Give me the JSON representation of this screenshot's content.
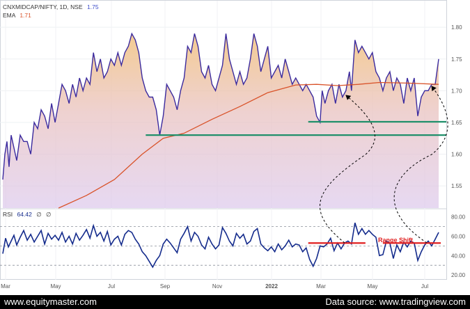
{
  "chart_data": [
    {
      "type": "area",
      "header": {
        "symbol": "CNXMIDCAP/NIFTY, 1D, NSE",
        "symbol_value": "1.75",
        "ema_label": "EMA",
        "ema_value": "1.71"
      },
      "y_ticks": [
        "1.80",
        "1.75",
        "1.70",
        "1.65",
        "1.60",
        "1.55"
      ],
      "ylim": [
        1.515,
        1.832
      ],
      "x_labels": [
        "Mar",
        "May",
        "Jul",
        "Sep",
        "Nov",
        "2022",
        "Mar",
        "May",
        "Jul"
      ],
      "series": [
        {
          "name": "CNXMIDCAP/NIFTY",
          "values": [
            [
              0,
              1.56
            ],
            [
              3,
              1.6
            ],
            [
              6,
              1.62
            ],
            [
              9,
              1.58
            ],
            [
              12,
              1.63
            ],
            [
              16,
              1.61
            ],
            [
              20,
              1.59
            ],
            [
              25,
              1.63
            ],
            [
              30,
              1.62
            ],
            [
              35,
              1.62
            ],
            [
              40,
              1.6
            ],
            [
              45,
              1.65
            ],
            [
              50,
              1.64
            ],
            [
              55,
              1.67
            ],
            [
              60,
              1.66
            ],
            [
              65,
              1.64
            ],
            [
              70,
              1.68
            ],
            [
              75,
              1.65
            ],
            [
              80,
              1.68
            ],
            [
              85,
              1.71
            ],
            [
              90,
              1.7
            ],
            [
              95,
              1.68
            ],
            [
              100,
              1.71
            ],
            [
              105,
              1.69
            ],
            [
              110,
              1.72
            ],
            [
              115,
              1.7
            ],
            [
              120,
              1.72
            ],
            [
              125,
              1.71
            ],
            [
              130,
              1.76
            ],
            [
              135,
              1.73
            ],
            [
              140,
              1.75
            ],
            [
              145,
              1.72
            ],
            [
              150,
              1.73
            ],
            [
              155,
              1.75
            ],
            [
              160,
              1.74
            ],
            [
              165,
              1.76
            ],
            [
              170,
              1.74
            ],
            [
              175,
              1.76
            ],
            [
              180,
              1.77
            ],
            [
              185,
              1.79
            ],
            [
              190,
              1.78
            ],
            [
              195,
              1.76
            ],
            [
              200,
              1.72
            ],
            [
              205,
              1.7
            ],
            [
              210,
              1.69
            ],
            [
              215,
              1.69
            ],
            [
              220,
              1.67
            ],
            [
              225,
              1.63
            ],
            [
              230,
              1.66
            ],
            [
              235,
              1.71
            ],
            [
              240,
              1.7
            ],
            [
              245,
              1.69
            ],
            [
              250,
              1.67
            ],
            [
              255,
              1.7
            ],
            [
              260,
              1.72
            ],
            [
              265,
              1.77
            ],
            [
              270,
              1.76
            ],
            [
              275,
              1.79
            ],
            [
              280,
              1.77
            ],
            [
              285,
              1.73
            ],
            [
              290,
              1.72
            ],
            [
              295,
              1.74
            ],
            [
              300,
              1.71
            ],
            [
              305,
              1.7
            ],
            [
              310,
              1.72
            ],
            [
              315,
              1.74
            ],
            [
              320,
              1.79
            ],
            [
              325,
              1.75
            ],
            [
              330,
              1.73
            ],
            [
              335,
              1.71
            ],
            [
              340,
              1.73
            ],
            [
              345,
              1.71
            ],
            [
              350,
              1.72
            ],
            [
              355,
              1.75
            ],
            [
              360,
              1.79
            ],
            [
              365,
              1.77
            ],
            [
              370,
              1.73
            ],
            [
              375,
              1.75
            ],
            [
              380,
              1.77
            ],
            [
              385,
              1.72
            ],
            [
              390,
              1.73
            ],
            [
              395,
              1.74
            ],
            [
              400,
              1.72
            ],
            [
              405,
              1.75
            ],
            [
              410,
              1.73
            ],
            [
              415,
              1.71
            ],
            [
              420,
              1.72
            ],
            [
              425,
              1.71
            ],
            [
              430,
              1.7
            ],
            [
              435,
              1.71
            ],
            [
              440,
              1.7
            ],
            [
              445,
              1.69
            ],
            [
              450,
              1.66
            ],
            [
              455,
              1.65
            ],
            [
              458,
              1.7
            ],
            [
              462,
              1.68
            ],
            [
              467,
              1.7
            ],
            [
              472,
              1.71
            ],
            [
              477,
              1.68
            ],
            [
              482,
              1.71
            ],
            [
              487,
              1.69
            ],
            [
              492,
              1.7
            ],
            [
              497,
              1.73
            ],
            [
              500,
              1.7
            ],
            [
              505,
              1.78
            ],
            [
              510,
              1.76
            ],
            [
              515,
              1.77
            ],
            [
              520,
              1.76
            ],
            [
              525,
              1.75
            ],
            [
              530,
              1.76
            ],
            [
              535,
              1.73
            ],
            [
              540,
              1.72
            ],
            [
              545,
              1.7
            ],
            [
              550,
              1.72
            ],
            [
              555,
              1.73
            ],
            [
              560,
              1.7
            ],
            [
              565,
              1.72
            ],
            [
              570,
              1.71
            ],
            [
              575,
              1.68
            ],
            [
              580,
              1.72
            ],
            [
              585,
              1.7
            ],
            [
              590,
              1.72
            ],
            [
              595,
              1.66
            ],
            [
              600,
              1.69
            ],
            [
              605,
              1.7
            ],
            [
              610,
              1.7
            ],
            [
              615,
              1.71
            ],
            [
              620,
              1.71
            ],
            [
              625,
              1.75
            ]
          ]
        },
        {
          "name": "EMA",
          "values": [
            [
              80,
              1.515
            ],
            [
              120,
              1.535
            ],
            [
              160,
              1.56
            ],
            [
              200,
              1.6
            ],
            [
              230,
              1.625
            ],
            [
              260,
              1.633
            ],
            [
              300,
              1.655
            ],
            [
              340,
              1.675
            ],
            [
              380,
              1.697
            ],
            [
              420,
              1.709
            ],
            [
              450,
              1.71
            ],
            [
              480,
              1.708
            ],
            [
              510,
              1.71
            ],
            [
              540,
              1.713
            ],
            [
              580,
              1.712
            ],
            [
              625,
              1.71
            ]
          ]
        }
      ],
      "support_lines": [
        {
          "y": 1.651,
          "x_start": 438
        },
        {
          "y": 1.63,
          "x_start": 205
        }
      ]
    },
    {
      "type": "line",
      "header": {
        "label": "RSI",
        "value": "64.42",
        "extra1": "∅",
        "extra2": "∅"
      },
      "y_ticks": [
        "80.00",
        "60.00",
        "40.00",
        "20.00"
      ],
      "ylim": [
        15,
        87
      ],
      "reference_levels": [
        70,
        50,
        30
      ],
      "annotation": "Range Shift",
      "series": [
        {
          "name": "RSI",
          "values": [
            [
              0,
              42
            ],
            [
              4,
              58
            ],
            [
              8,
              49
            ],
            [
              12,
              55
            ],
            [
              16,
              61
            ],
            [
              20,
              51
            ],
            [
              25,
              59
            ],
            [
              30,
              66
            ],
            [
              35,
              56
            ],
            [
              40,
              62
            ],
            [
              45,
              54
            ],
            [
              50,
              60
            ],
            [
              55,
              66
            ],
            [
              60,
              52
            ],
            [
              65,
              63
            ],
            [
              70,
              57
            ],
            [
              75,
              61
            ],
            [
              80,
              56
            ],
            [
              85,
              64
            ],
            [
              90,
              54
            ],
            [
              95,
              60
            ],
            [
              100,
              52
            ],
            [
              105,
              63
            ],
            [
              110,
              56
            ],
            [
              115,
              61
            ],
            [
              120,
              67
            ],
            [
              125,
              58
            ],
            [
              130,
              71
            ],
            [
              135,
              60
            ],
            [
              140,
              64
            ],
            [
              145,
              55
            ],
            [
              150,
              65
            ],
            [
              155,
              51
            ],
            [
              160,
              57
            ],
            [
              165,
              60
            ],
            [
              170,
              51
            ],
            [
              175,
              62
            ],
            [
              180,
              66
            ],
            [
              185,
              64
            ],
            [
              190,
              57
            ],
            [
              195,
              52
            ],
            [
              200,
              44
            ],
            [
              205,
              40
            ],
            [
              210,
              34
            ],
            [
              215,
              28
            ],
            [
              220,
              35
            ],
            [
              225,
              40
            ],
            [
              230,
              52
            ],
            [
              235,
              57
            ],
            [
              240,
              53
            ],
            [
              245,
              48
            ],
            [
              250,
              43
            ],
            [
              255,
              57
            ],
            [
              260,
              63
            ],
            [
              265,
              70
            ],
            [
              270,
              55
            ],
            [
              275,
              64
            ],
            [
              280,
              60
            ],
            [
              285,
              51
            ],
            [
              290,
              47
            ],
            [
              295,
              59
            ],
            [
              300,
              52
            ],
            [
              305,
              47
            ],
            [
              310,
              51
            ],
            [
              315,
              69
            ],
            [
              320,
              63
            ],
            [
              325,
              55
            ],
            [
              330,
              50
            ],
            [
              335,
              63
            ],
            [
              340,
              58
            ],
            [
              345,
              62
            ],
            [
              350,
              52
            ],
            [
              355,
              55
            ],
            [
              360,
              65
            ],
            [
              365,
              68
            ],
            [
              370,
              52
            ],
            [
              375,
              48
            ],
            [
              380,
              45
            ],
            [
              385,
              49
            ],
            [
              390,
              44
            ],
            [
              395,
              52
            ],
            [
              400,
              46
            ],
            [
              405,
              50
            ],
            [
              410,
              56
            ],
            [
              415,
              49
            ],
            [
              420,
              52
            ],
            [
              425,
              51
            ],
            [
              430,
              44
            ],
            [
              435,
              48
            ],
            [
              440,
              36
            ],
            [
              445,
              29
            ],
            [
              450,
              37
            ],
            [
              455,
              50
            ],
            [
              460,
              49
            ],
            [
              465,
              52
            ],
            [
              470,
              58
            ],
            [
              475,
              45
            ],
            [
              480,
              53
            ],
            [
              485,
              47
            ],
            [
              490,
              53
            ],
            [
              495,
              55
            ],
            [
              500,
              52
            ],
            [
              505,
              74
            ],
            [
              510,
              62
            ],
            [
              515,
              68
            ],
            [
              520,
              62
            ],
            [
              525,
              66
            ],
            [
              530,
              62
            ],
            [
              535,
              59
            ],
            [
              540,
              40
            ],
            [
              545,
              41
            ],
            [
              550,
              55
            ],
            [
              555,
              53
            ],
            [
              560,
              37
            ],
            [
              565,
              51
            ],
            [
              570,
              44
            ],
            [
              575,
              54
            ],
            [
              580,
              49
            ],
            [
              585,
              55
            ],
            [
              590,
              53
            ],
            [
              595,
              35
            ],
            [
              600,
              44
            ],
            [
              605,
              51
            ],
            [
              610,
              55
            ],
            [
              615,
              50
            ],
            [
              620,
              57
            ],
            [
              625,
              64
            ]
          ]
        }
      ],
      "range_lines": [
        {
          "y": 53,
          "x_start": 438,
          "x_end": 520
        },
        {
          "y": 53,
          "x_start": 545,
          "x_end": 628
        }
      ]
    }
  ],
  "footer": {
    "left": "www.equitymaster.com",
    "right": "Data source: www.tradingview.com"
  },
  "colors": {
    "price_line": "#3b2a9e",
    "ema_line": "#d9532a",
    "support": "#1f8f6a",
    "rsi_line": "#142b8c",
    "range_shift": "#e02020",
    "annotation": "#e02020"
  }
}
